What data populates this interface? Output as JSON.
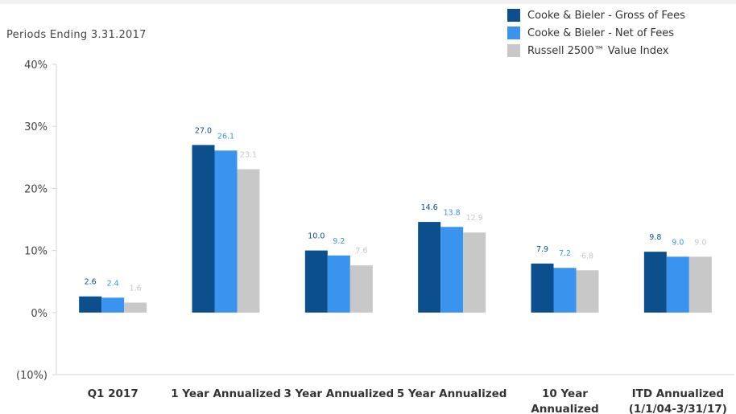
{
  "subtitle": "Periods Ending 3.31.2017",
  "colors": {
    "gross": "#0b4f8c",
    "net": "#3b93f0",
    "index": "#c8c8c8"
  },
  "chart_data": {
    "type": "bar",
    "title": "",
    "xlabel": "",
    "ylabel": "",
    "ylim": [
      -10,
      40
    ],
    "yticks": [
      {
        "value": 40,
        "label": "40%"
      },
      {
        "value": 30,
        "label": "30%"
      },
      {
        "value": 20,
        "label": "20%"
      },
      {
        "value": 10,
        "label": "10%"
      },
      {
        "value": 0,
        "label": "0%"
      },
      {
        "value": -10,
        "label": "(10%)"
      }
    ],
    "categories": [
      [
        "Q1 2017"
      ],
      [
        "1 Year Annualized"
      ],
      [
        "3 Year Annualized"
      ],
      [
        "5 Year Annualized"
      ],
      [
        "10 Year",
        "Annualized"
      ],
      [
        "ITD Annualized",
        "(1/1/04-3/31/17)"
      ]
    ],
    "series": [
      {
        "name": "Cooke & Bieler - Gross of Fees",
        "color": "#0b4f8c",
        "values": [
          2.6,
          27.0,
          10.0,
          14.6,
          7.9,
          9.8
        ],
        "labels": [
          "2.6",
          "27.0",
          "10.0",
          "14.6",
          "7.9",
          "9.8"
        ]
      },
      {
        "name": "Cooke & Bieler - Net of Fees",
        "color": "#3b93f0",
        "values": [
          2.4,
          26.1,
          9.2,
          13.8,
          7.2,
          9.0
        ],
        "labels": [
          "2.4",
          "26.1",
          "9.2",
          "13.8",
          "7.2",
          "9.0"
        ]
      },
      {
        "name": "Russell 2500™ Value Index",
        "color": "#c8c8c8",
        "values": [
          1.6,
          23.1,
          7.6,
          12.9,
          6.8,
          9.0
        ],
        "labels": [
          "1.6",
          "23.1",
          "7.6",
          "12.9",
          "6.8",
          "9.0"
        ]
      }
    ],
    "legend": "top-right",
    "grid": false
  }
}
